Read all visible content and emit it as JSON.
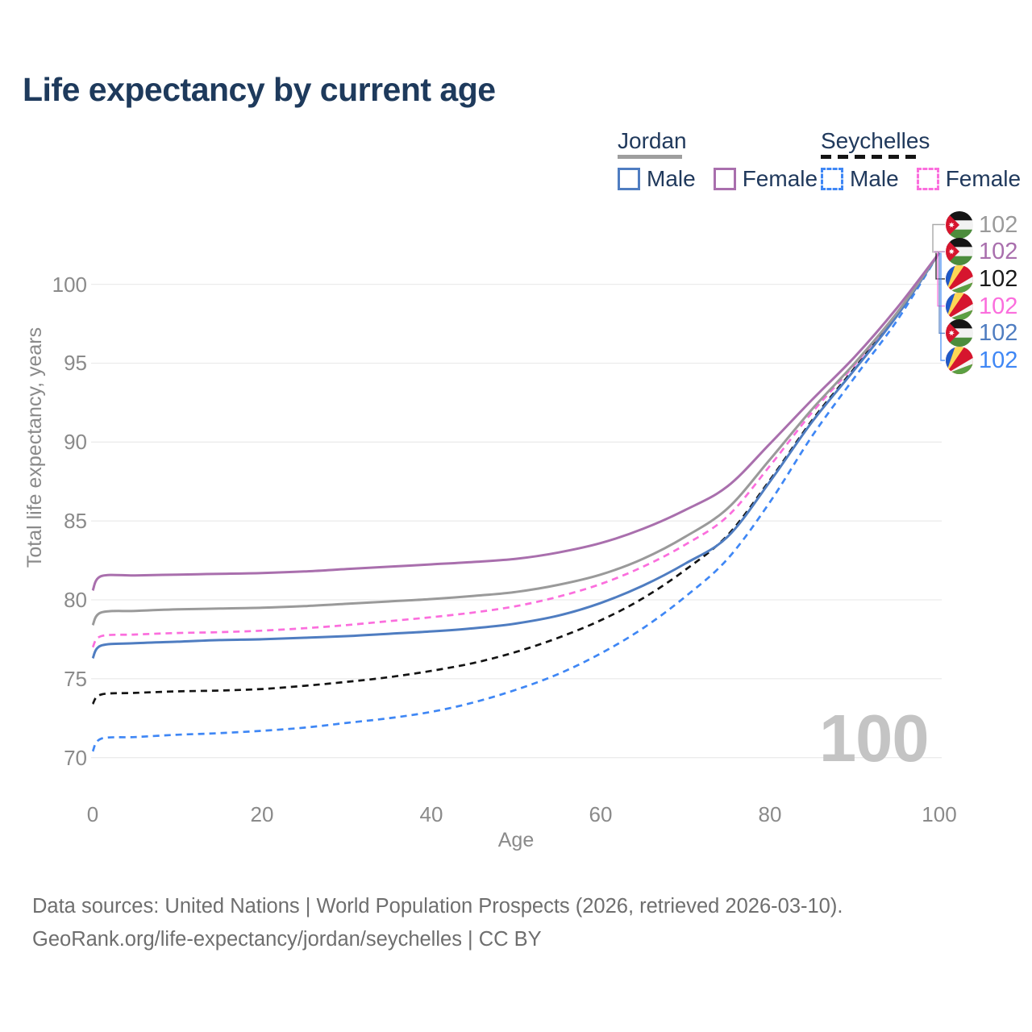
{
  "title": "Life expectancy by current age",
  "watermark": "100",
  "legend": {
    "groups": [
      {
        "country": "Jordan",
        "line_style": "solid",
        "underline_color": "#9e9e9e",
        "items": [
          {
            "label": "Male",
            "color": "#4f7dc1",
            "dash": false
          },
          {
            "label": "Female",
            "color": "#a96fad",
            "dash": false
          }
        ]
      },
      {
        "country": "Seychelles",
        "line_style": "dashed",
        "underline_color": "#141414",
        "items": [
          {
            "label": "Male",
            "color": "#3f87f5",
            "dash": true
          },
          {
            "label": "Female",
            "color": "#fb6edd",
            "dash": true
          }
        ]
      }
    ]
  },
  "chart_data": {
    "type": "line",
    "title": "Life expectancy by current age",
    "xlabel": "Age",
    "ylabel": "Total life expectancy, years",
    "x_ticks": [
      0,
      20,
      40,
      60,
      80,
      100
    ],
    "y_ticks": [
      70,
      75,
      80,
      85,
      90,
      95,
      100
    ],
    "xlim": [
      0,
      100
    ],
    "ylim": [
      69.5,
      103
    ],
    "grid": "horizontal-only",
    "legend_position": "top-right",
    "ages": [
      0,
      1,
      5,
      10,
      15,
      20,
      25,
      30,
      35,
      40,
      45,
      50,
      55,
      60,
      65,
      70,
      75,
      80,
      85,
      90,
      95,
      100
    ],
    "series": [
      {
        "id": "jordan-all",
        "country": "Jordan",
        "group": "All",
        "flag": "jordan",
        "color": "#9a9a9a",
        "dash": false,
        "z": 4,
        "row": 0,
        "end_label": "102",
        "values": [
          78.4,
          79.2,
          79.3,
          79.4,
          79.45,
          79.5,
          79.6,
          79.75,
          79.9,
          80.05,
          80.25,
          80.5,
          80.95,
          81.6,
          82.6,
          84.0,
          85.8,
          88.9,
          92.1,
          95.0,
          98.2,
          102
        ]
      },
      {
        "id": "jordan-female",
        "country": "Jordan",
        "group": "Female",
        "flag": "jordan",
        "color": "#a96fad",
        "dash": false,
        "z": 5,
        "row": 1,
        "end_label": "102",
        "values": [
          80.6,
          81.5,
          81.55,
          81.6,
          81.65,
          81.7,
          81.8,
          81.95,
          82.1,
          82.25,
          82.4,
          82.6,
          83.0,
          83.6,
          84.5,
          85.7,
          87.2,
          89.9,
          92.7,
          95.4,
          98.5,
          102
        ]
      },
      {
        "id": "seychelles-all",
        "country": "Seychelles",
        "group": "All",
        "flag": "seychelles",
        "color": "#141414",
        "dash": true,
        "z": 1,
        "row": 2,
        "end_label": "102",
        "values": [
          73.4,
          74.0,
          74.1,
          74.2,
          74.25,
          74.35,
          74.55,
          74.8,
          75.1,
          75.5,
          76.0,
          76.7,
          77.6,
          78.7,
          80.1,
          81.9,
          84.1,
          87.6,
          91.4,
          94.7,
          98.1,
          102
        ]
      },
      {
        "id": "seychelles-female",
        "country": "Seychelles",
        "group": "Female",
        "flag": "seychelles",
        "color": "#fb6edd",
        "dash": true,
        "z": 2,
        "row": 3,
        "end_label": "102",
        "values": [
          77.0,
          77.7,
          77.8,
          77.9,
          77.95,
          78.05,
          78.2,
          78.4,
          78.65,
          78.9,
          79.2,
          79.6,
          80.2,
          81.0,
          82.1,
          83.5,
          85.3,
          88.5,
          91.9,
          94.9,
          98.2,
          102
        ]
      },
      {
        "id": "jordan-male",
        "country": "Jordan",
        "group": "Male",
        "flag": "jordan",
        "color": "#4f7dc1",
        "dash": false,
        "z": 3,
        "row": 4,
        "end_label": "102",
        "values": [
          76.3,
          77.1,
          77.25,
          77.35,
          77.45,
          77.5,
          77.6,
          77.7,
          77.85,
          78.0,
          78.2,
          78.5,
          79.0,
          79.8,
          80.9,
          82.3,
          84.0,
          87.5,
          91.3,
          94.6,
          98.0,
          102
        ]
      },
      {
        "id": "seychelles-male",
        "country": "Seychelles",
        "group": "Male",
        "flag": "seychelles",
        "color": "#3f87f5",
        "dash": true,
        "z": 0,
        "row": 5,
        "end_label": "102",
        "values": [
          70.4,
          71.2,
          71.3,
          71.45,
          71.55,
          71.7,
          71.9,
          72.2,
          72.5,
          72.9,
          73.5,
          74.3,
          75.3,
          76.6,
          78.2,
          80.2,
          82.6,
          86.2,
          90.4,
          94.1,
          97.7,
          102
        ]
      }
    ],
    "colors": {
      "grid": "#ececec",
      "tick_text": "#8a8a8a",
      "title_text": "#1e3a5c",
      "watermark": "#c4c4c4",
      "footer_text": "#6e6e6e"
    }
  },
  "footer": {
    "line1": "Data sources: United Nations | World Population Prospects (2026, retrieved 2026-03-10).",
    "line2": "GeoRank.org/life-expectancy/jordan/seychelles | CC BY"
  }
}
